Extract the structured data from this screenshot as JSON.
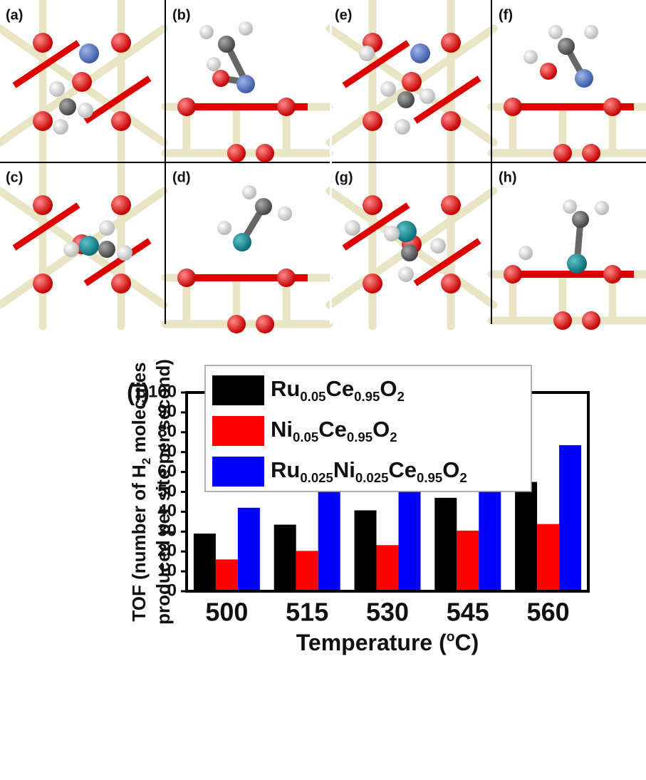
{
  "panels": [
    "(a)",
    "(b)",
    "(c)",
    "(d)",
    "(e)",
    "(f)",
    "(g)",
    "(h)"
  ],
  "chart_data": {
    "type": "bar",
    "panel_label": "(i)",
    "x_label": "Temperature (oC)",
    "y_label": [
      "TOF (number of H2 molecules",
      "produced per site per second)"
    ],
    "categories": [
      "500",
      "515",
      "530",
      "545",
      "560"
    ],
    "series": [
      {
        "name": "Ru0.05Ce0.95O2",
        "color": "#000000",
        "values": [
          29,
          33.5,
          40.7,
          47,
          55
        ]
      },
      {
        "name": "Ni0.05Ce0.95O2",
        "color": "#ff0000",
        "values": [
          16,
          20.3,
          23.2,
          30.5,
          33.8
        ]
      },
      {
        "name": "Ru0.025Ni0.025Ce0.95O2",
        "color": "#0000ff",
        "values": [
          42,
          51.5,
          57.3,
          62.3,
          73.5
        ]
      }
    ],
    "ylim": [
      0,
      100
    ],
    "yticks": [
      0,
      10,
      20,
      30,
      40,
      50,
      60,
      70,
      80,
      90,
      100
    ],
    "grid": false
  }
}
